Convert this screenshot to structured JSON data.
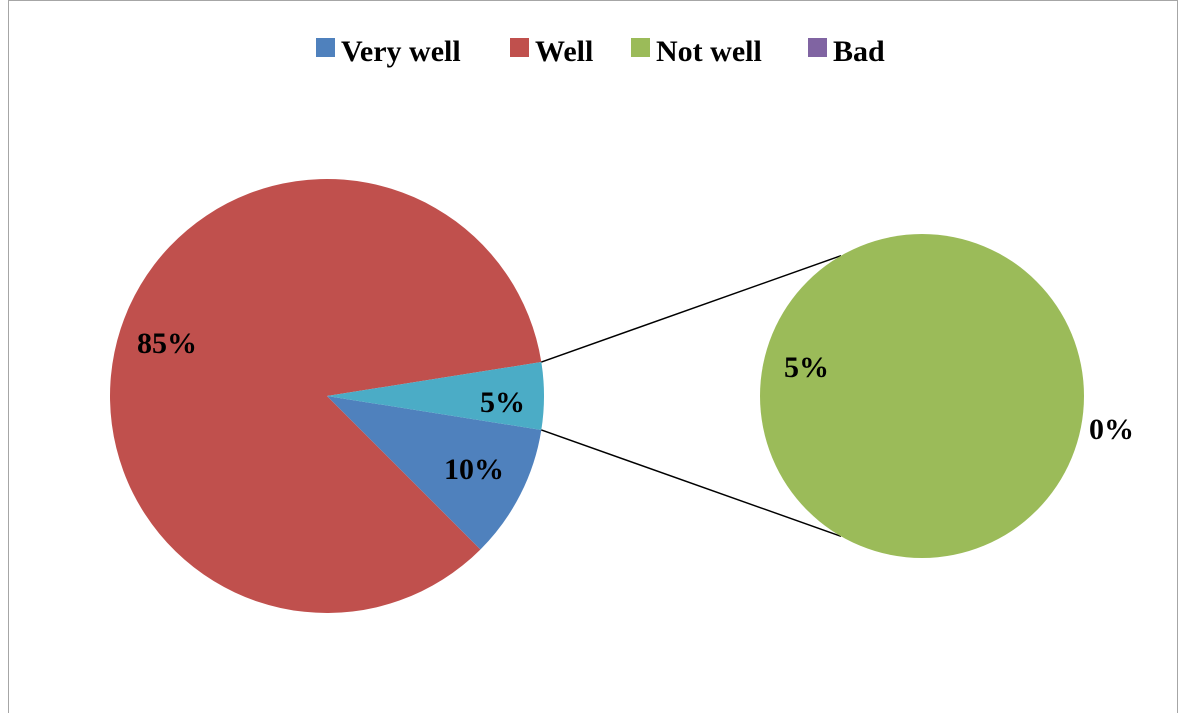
{
  "chart_data": {
    "type": "pie",
    "subtype": "pie-of-pie",
    "legend_position": "top",
    "categories": [
      "Very well",
      "Well",
      "Not well",
      "Bad"
    ],
    "values": [
      10,
      85,
      5,
      0
    ],
    "value_labels": [
      "10%",
      "85%",
      "5%",
      "0%"
    ],
    "main_pie_combined_label": "5%",
    "colors": {
      "Very well": "#4f81bd",
      "Well": "#c0504d",
      "Not well": "#9bbb59",
      "Bad": "#8064a2",
      "Other": "#4bacc6"
    }
  }
}
